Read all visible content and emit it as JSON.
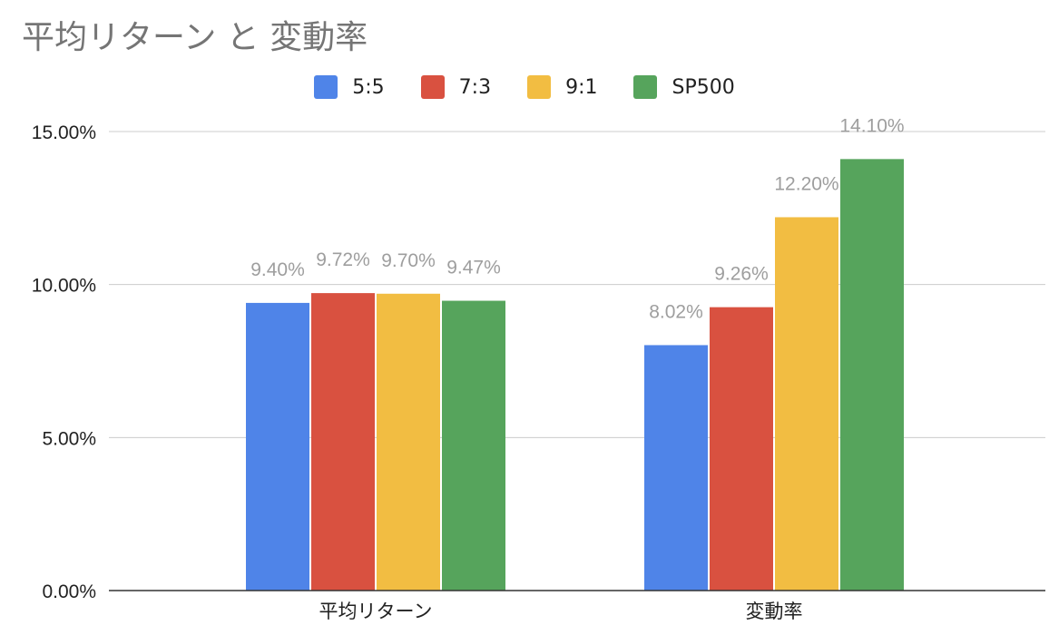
{
  "chart_data": {
    "type": "bar",
    "title": "平均リターン と 変動率",
    "categories": [
      "平均リターン",
      "変動率"
    ],
    "series": [
      {
        "name": "5:5",
        "values": [
          9.4,
          8.02
        ],
        "labels": [
          "9.40%",
          "8.02%"
        ],
        "color": "#4f84e8"
      },
      {
        "name": "7:3",
        "values": [
          9.72,
          9.26
        ],
        "labels": [
          "9.72%",
          "9.26%"
        ],
        "color": "#d95140"
      },
      {
        "name": "9:1",
        "values": [
          9.7,
          12.2
        ],
        "labels": [
          "9.70%",
          "12.20%"
        ],
        "color": "#f2bd42"
      },
      {
        "name": "SP500",
        "values": [
          9.47,
          14.1
        ],
        "labels": [
          "9.47%",
          "14.10%"
        ],
        "color": "#56a45c"
      }
    ],
    "yticks": [
      0,
      5,
      10,
      15
    ],
    "ytick_labels": [
      "0.00%",
      "5.00%",
      "10.00%",
      "15.00%"
    ],
    "ylim": [
      0,
      15
    ],
    "xlabel": "",
    "ylabel": "",
    "grid": true,
    "legend_position": "top"
  }
}
